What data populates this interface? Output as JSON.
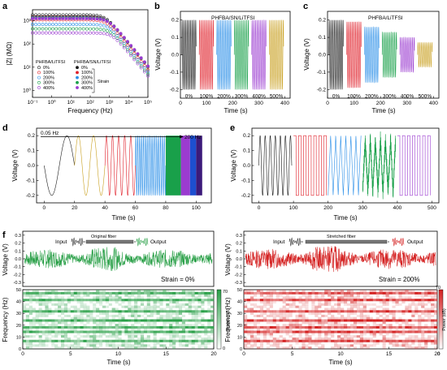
{
  "panels": {
    "a": {
      "letter": "a",
      "xlabel": "Frequency (Hz)",
      "ylabel": "|Z| (MΩ)",
      "legend_title_1": "PHFBA/LiTFSI",
      "legend_title_2": "PHFBA/SN/LiTFSI",
      "strain_note": "Strain",
      "xticks": [
        "10⁻¹",
        "10⁰",
        "10¹",
        "10²",
        "10³",
        "10⁴",
        "10⁵"
      ],
      "yticks": [
        "10³",
        "10²",
        "10¹",
        "10⁰"
      ]
    },
    "b": {
      "letter": "b",
      "title": "PHFBA/SN/LiTFSI",
      "xlabel": "Time (s)",
      "ylabel": "Voltage (V)"
    },
    "c": {
      "letter": "c",
      "title": "PHFBA/LiTFSI",
      "xlabel": "Time (s)",
      "ylabel": "Voltage (V)"
    },
    "d": {
      "letter": "d",
      "xlabel": "Time (s)",
      "ylabel": "Voltage (V)",
      "arrow_start": "0.05 Hz",
      "arrow_end": "200 Hz"
    },
    "e": {
      "letter": "e",
      "xlabel": "Time (s)",
      "ylabel": "Voltage (V)"
    },
    "f": {
      "letter": "f"
    },
    "f_left": {
      "input": "Input",
      "output": "Output",
      "fiber": "Original fiber",
      "strain": "Strain = 0%",
      "ylabel_top": "Voltage (V)",
      "ylabel_bottom": "Frequency (Hz)",
      "xlabel": "Time (s)",
      "cbar_label": "Power (dB)"
    },
    "f_right": {
      "input": "Input",
      "output": "Output",
      "fiber": "Stretched fiber",
      "strain": "Strain = 200%",
      "ylabel_top": "Voltage (V)",
      "ylabel_bottom": "Frequency (Hz)",
      "xlabel": "Time (s)",
      "cbar_label": "Power (dB)"
    }
  },
  "colors": {
    "black": "#1a1a1a",
    "red": "#e0202a",
    "blue": "#2b8fe8",
    "green": "#19a04a",
    "purple": "#9b3bd0",
    "gold": "#c9a020",
    "strain_green": "#2aa048",
    "strain_red": "#d42020"
  },
  "chart_data": [
    {
      "id": "a",
      "type": "line",
      "title": "",
      "xlabel": "Frequency (Hz)",
      "ylabel": "|Z| (MΩ)",
      "xscale": "log",
      "yscale": "log",
      "xlim": [
        0.1,
        100000
      ],
      "ylim": [
        0.5,
        3000
      ],
      "series": [
        {
          "name": "PHFBA/LiTFSI 0%",
          "plateau": 1800,
          "cutoff": 600
        },
        {
          "name": "PHFBA/LiTFSI 100%",
          "plateau": 1100,
          "cutoff": 700
        },
        {
          "name": "PHFBA/LiTFSI 200%",
          "plateau": 700,
          "cutoff": 900
        },
        {
          "name": "PHFBA/LiTFSI 300%",
          "plateau": 450,
          "cutoff": 1100
        },
        {
          "name": "PHFBA/LiTFSI 400%",
          "plateau": 300,
          "cutoff": 1400
        },
        {
          "name": "PHFBA/SN/LiTFSI 0%",
          "plateau": 1500,
          "cutoff": 700
        },
        {
          "name": "PHFBA/SN/LiTFSI 100%",
          "plateau": 1400,
          "cutoff": 750
        },
        {
          "name": "PHFBA/SN/LiTFSI 200%",
          "plateau": 1350,
          "cutoff": 800
        },
        {
          "name": "PHFBA/SN/LiTFSI 300%",
          "plateau": 1300,
          "cutoff": 850
        },
        {
          "name": "PHFBA/SN/LiTFSI 400%",
          "plateau": 1250,
          "cutoff": 900
        }
      ]
    },
    {
      "id": "b",
      "type": "line",
      "xlabel": "Time (s)",
      "ylabel": "Voltage (V)",
      "xlim": [
        0,
        420
      ],
      "ylim": [
        -0.25,
        0.25
      ],
      "xticks": [
        0,
        100,
        200,
        300,
        400
      ],
      "yticks": [
        -0.2,
        -0.1,
        0.0,
        0.1,
        0.2
      ],
      "segments": [
        {
          "label": "0%",
          "amp": 0.2
        },
        {
          "label": "100%",
          "amp": 0.2
        },
        {
          "label": "200%",
          "amp": 0.2
        },
        {
          "label": "300%",
          "amp": 0.2
        },
        {
          "label": "400%",
          "amp": 0.2
        },
        {
          "label": "500%",
          "amp": 0.2
        }
      ]
    },
    {
      "id": "c",
      "type": "line",
      "xlabel": "Time (s)",
      "ylabel": "Voltage (V)",
      "xlim": [
        0,
        420
      ],
      "ylim": [
        -0.25,
        0.25
      ],
      "xticks": [
        0,
        100,
        200,
        300,
        400
      ],
      "yticks": [
        -0.2,
        -0.1,
        0.0,
        0.1,
        0.2
      ],
      "segments": [
        {
          "label": "0%",
          "amp": 0.2
        },
        {
          "label": "100%",
          "amp": 0.19
        },
        {
          "label": "200%",
          "amp": 0.16
        },
        {
          "label": "300%",
          "amp": 0.13
        },
        {
          "label": "400%",
          "amp": 0.1
        },
        {
          "label": "500%",
          "amp": 0.07
        }
      ]
    },
    {
      "id": "d",
      "type": "line",
      "xlabel": "Time (s)",
      "ylabel": "Voltage (V)",
      "xlim": [
        -5,
        110
      ],
      "ylim": [
        -0.25,
        0.25
      ],
      "xticks": [
        0,
        20,
        40,
        60,
        80,
        100
      ],
      "yticks": [
        -0.2,
        -0.1,
        0.0,
        0.1,
        0.2
      ]
    },
    {
      "id": "e",
      "type": "line",
      "xlabel": "Time (s)",
      "ylabel": "Voltage (V)",
      "xlim": [
        -20,
        520
      ],
      "ylim": [
        -0.25,
        0.25
      ],
      "xticks": [
        0,
        100,
        200,
        300,
        400,
        500
      ],
      "yticks": [
        -0.2,
        -0.1,
        0.0,
        0.1,
        0.2
      ],
      "waveforms": [
        "sine",
        "square",
        "triangle",
        "noise",
        "square"
      ]
    },
    {
      "id": "f_top_left",
      "type": "line",
      "xlabel": "",
      "ylabel": "Voltage (V)",
      "ylim": [
        -0.35,
        0.35
      ],
      "yticks": [
        -0.3,
        -0.2,
        -0.1,
        0.0,
        0.1,
        0.2,
        0.3
      ]
    },
    {
      "id": "f_top_right",
      "type": "line",
      "xlabel": "",
      "ylabel": "Voltage (V)",
      "ylim": [
        -0.35,
        0.35
      ],
      "yticks": [
        -0.3,
        -0.2,
        -0.1,
        0.0,
        0.1,
        0.2,
        0.3
      ]
    },
    {
      "id": "f_bottom_left",
      "type": "heatmap",
      "xlabel": "Time (s)",
      "ylabel": "Frequency (Hz)",
      "xlim": [
        0,
        20
      ],
      "ylim": [
        0,
        50
      ],
      "xticks": [
        0,
        5,
        10,
        15,
        20
      ],
      "yticks": [
        0,
        10,
        20,
        30,
        40,
        50
      ],
      "colorbar": [
        0,
        70
      ]
    },
    {
      "id": "f_bottom_right",
      "type": "heatmap",
      "xlabel": "Time (s)",
      "ylabel": "Frequency (Hz)",
      "xlim": [
        0,
        20
      ],
      "ylim": [
        0,
        50
      ],
      "xticks": [
        0,
        5,
        10,
        15,
        20
      ],
      "yticks": [
        0,
        10,
        20,
        30,
        40,
        50
      ],
      "colorbar": [
        0,
        70
      ]
    }
  ]
}
